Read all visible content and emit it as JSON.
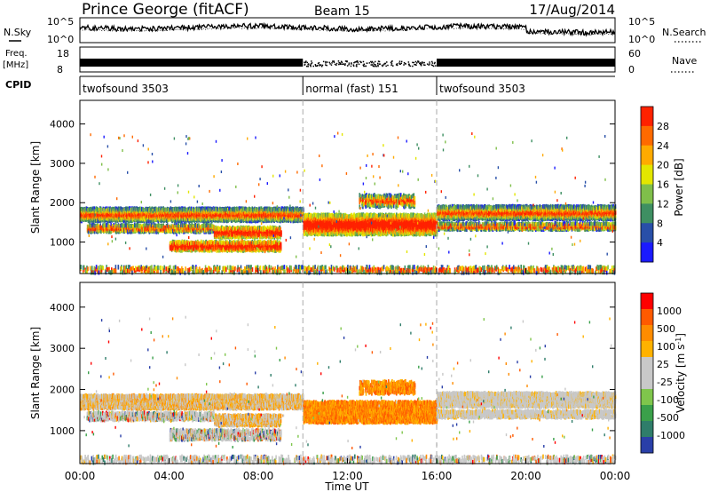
{
  "header": {
    "station": "Prince George (fitACF)",
    "beam": "Beam 15",
    "date": "17/Aug/2014"
  },
  "colors": {
    "power_scale": [
      "#1a1aff",
      "#284fa8",
      "#3e8f62",
      "#7fbf4a",
      "#e3e600",
      "#ffaa00",
      "#ff6a00",
      "#ff2200"
    ],
    "velocity_scale": [
      "#2a3fa8",
      "#2f7d6a",
      "#3aa04a",
      "#7fc64c",
      "#c8c8c8",
      "#c8c8c8",
      "#ffb200",
      "#ff8c00",
      "#ff5a00",
      "#ff0000"
    ]
  },
  "chart_data": [
    {
      "type": "line",
      "panel": "noise",
      "series": [
        {
          "name": "N.Sky",
          "label": "N.Sky"
        },
        {
          "name": "N.Search",
          "label": "N.Search"
        }
      ],
      "left_ticks": [
        "10^5",
        "10^0"
      ],
      "right_ticks": [
        "10^5",
        "10^0"
      ]
    },
    {
      "type": "scatter",
      "panel": "freq_nave",
      "left_label_lines": [
        "Freq.",
        "[MHz]"
      ],
      "left_ticks": [
        "18",
        "8"
      ],
      "right_label": "Nave",
      "right_ticks": [
        "60",
        "0"
      ]
    },
    {
      "type": "table",
      "panel": "cpid",
      "label": "CPID",
      "segments": [
        {
          "name": "twofsound 3503",
          "start_ut": "00:00",
          "end_ut": "10:00"
        },
        {
          "name": "normal (fast) 151",
          "start_ut": "10:00",
          "end_ut": "16:00"
        },
        {
          "name": "twofsound 3503",
          "start_ut": "16:00",
          "end_ut": "24:00"
        }
      ]
    },
    {
      "type": "heatmap",
      "panel": "power",
      "ylabel": "Slant Range [km]",
      "yticks": [
        "4000",
        "3000",
        "2000",
        "1000"
      ],
      "ylim": [
        200,
        4600
      ],
      "colorbar_label": "Power [dB]",
      "colorbar_ticks": [
        "28",
        "24",
        "20",
        "16",
        "12",
        "8",
        "4"
      ],
      "colorbar_range": [
        0,
        32
      ]
    },
    {
      "type": "heatmap",
      "panel": "velocity",
      "ylabel": "Slant Range [km]",
      "yticks": [
        "4000",
        "3000",
        "2000",
        "1000"
      ],
      "ylim": [
        200,
        4600
      ],
      "colorbar_label": "Velocity [m s^-1]",
      "colorbar_ticks": [
        "1000",
        "500",
        "100",
        "25",
        "-25",
        "-100",
        "-500",
        "-1000"
      ],
      "xlabel": "Time UT",
      "xticks": [
        "00:00",
        "04:00",
        "08:00",
        "12:00",
        "16:00",
        "20:00",
        "00:00"
      ]
    }
  ]
}
